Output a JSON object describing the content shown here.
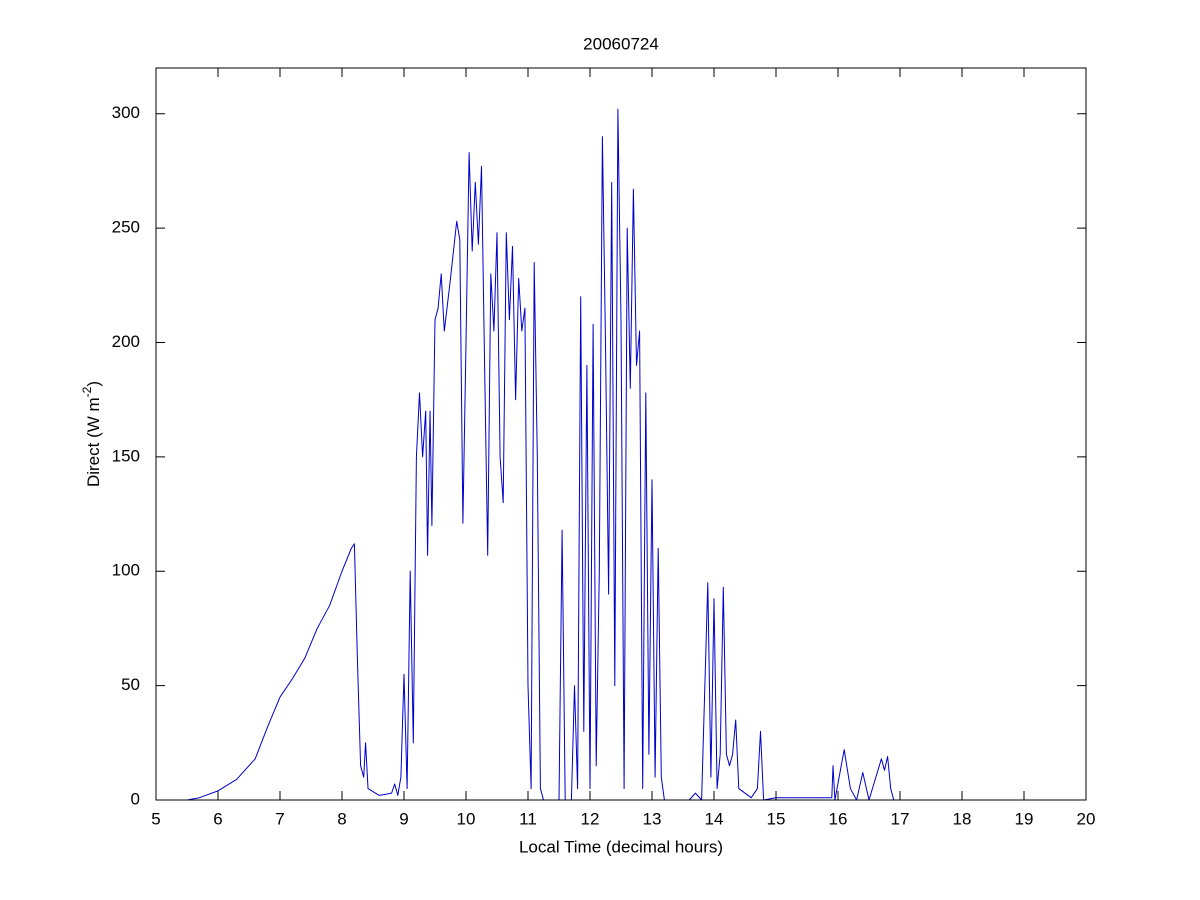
{
  "chart_data": {
    "type": "line",
    "title": "20060724",
    "xlabel": "Local Time (decimal hours)",
    "ylabel_parts": [
      "Direct (W m",
      "-2",
      ")"
    ],
    "color": "#0000cc",
    "xlim": [
      5,
      20
    ],
    "ylim": [
      0,
      320
    ],
    "xticks": [
      5,
      6,
      7,
      8,
      9,
      10,
      11,
      12,
      13,
      14,
      15,
      16,
      17,
      18,
      19,
      20
    ],
    "yticks": [
      0,
      50,
      100,
      150,
      200,
      250,
      300
    ],
    "grid": false,
    "x": [
      5.37,
      5.5,
      5.7,
      6.0,
      6.3,
      6.6,
      6.8,
      7.0,
      7.2,
      7.4,
      7.6,
      7.8,
      8.0,
      8.15,
      8.2,
      8.25,
      8.3,
      8.35,
      8.38,
      8.42,
      8.6,
      8.8,
      8.85,
      8.9,
      8.95,
      9.0,
      9.05,
      9.1,
      9.15,
      9.2,
      9.25,
      9.3,
      9.35,
      9.38,
      9.42,
      9.45,
      9.5,
      9.55,
      9.6,
      9.65,
      9.75,
      9.85,
      9.9,
      9.95,
      10.0,
      10.05,
      10.1,
      10.15,
      10.2,
      10.25,
      10.3,
      10.35,
      10.4,
      10.45,
      10.5,
      10.55,
      10.6,
      10.65,
      10.7,
      10.75,
      10.8,
      10.85,
      10.9,
      10.95,
      11.0,
      11.05,
      11.1,
      11.15,
      11.2,
      11.25,
      11.5,
      11.55,
      11.6,
      11.7,
      11.75,
      11.8,
      11.85,
      11.9,
      11.95,
      12.0,
      12.05,
      12.1,
      12.15,
      12.2,
      12.25,
      12.3,
      12.35,
      12.4,
      12.45,
      12.5,
      12.55,
      12.6,
      12.65,
      12.7,
      12.75,
      12.8,
      12.85,
      12.9,
      12.95,
      13.0,
      13.05,
      13.1,
      13.15,
      13.2,
      13.6,
      13.7,
      13.8,
      13.9,
      13.95,
      14.0,
      14.05,
      14.1,
      14.15,
      14.2,
      14.25,
      14.3,
      14.35,
      14.4,
      14.6,
      14.7,
      14.75,
      14.8,
      15.0,
      15.5,
      15.9,
      15.92,
      15.95,
      16.1,
      16.2,
      16.3,
      16.4,
      16.5,
      16.7,
      16.75,
      16.8,
      16.85,
      16.9,
      18.55
    ],
    "values": [
      0,
      0,
      1,
      4,
      9,
      18,
      32,
      45,
      53,
      62,
      75,
      85,
      100,
      110,
      112,
      60,
      15,
      10,
      25,
      5,
      2,
      3,
      7,
      2,
      10,
      55,
      5,
      100,
      25,
      150,
      178,
      150,
      170,
      107,
      170,
      120,
      210,
      215,
      230,
      205,
      228,
      253,
      245,
      121,
      200,
      283,
      240,
      270,
      243,
      277,
      190,
      107,
      230,
      205,
      248,
      150,
      130,
      248,
      210,
      242,
      175,
      228,
      205,
      215,
      50,
      5,
      235,
      150,
      5,
      0,
      0,
      118,
      0,
      0,
      50,
      5,
      220,
      30,
      190,
      5,
      208,
      15,
      100,
      290,
      200,
      90,
      270,
      50,
      302,
      210,
      5,
      250,
      180,
      267,
      190,
      205,
      5,
      178,
      20,
      140,
      10,
      110,
      10,
      0,
      0,
      3,
      0,
      95,
      10,
      88,
      5,
      20,
      93,
      20,
      15,
      20,
      35,
      5,
      1,
      5,
      30,
      0,
      1,
      1,
      1,
      15,
      0,
      22,
      5,
      0,
      12,
      0,
      18,
      13,
      19,
      5,
      0,
      0
    ]
  }
}
